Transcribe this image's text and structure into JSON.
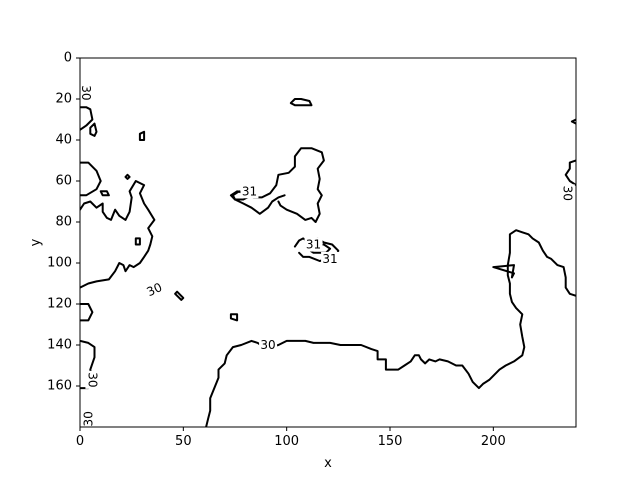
{
  "chart_data": {
    "type": "contour",
    "title": "",
    "xlabel": "x",
    "ylabel": "y",
    "xlim": [
      0,
      240
    ],
    "ylim": [
      180,
      0
    ],
    "y_inverted": true,
    "x_ticks": [
      0,
      50,
      100,
      150,
      200
    ],
    "y_ticks": [
      0,
      20,
      40,
      60,
      80,
      100,
      120,
      140,
      160
    ],
    "grid": false,
    "line_color": "#000000",
    "levels": [
      30,
      31
    ],
    "contour_labels": [
      {
        "text": "30",
        "x": 3,
        "y": 17,
        "angle": 90
      },
      {
        "text": "31",
        "x": 82,
        "y": 65,
        "angle": 0
      },
      {
        "text": "31",
        "x": 113,
        "y": 91,
        "angle": 0
      },
      {
        "text": "31",
        "x": 121,
        "y": 98,
        "angle": 0
      },
      {
        "text": "30",
        "x": 236,
        "y": 66,
        "angle": 90
      },
      {
        "text": "30",
        "x": 36,
        "y": 113,
        "angle": -25
      },
      {
        "text": "30",
        "x": 91,
        "y": 140,
        "angle": 0
      },
      {
        "text": "30",
        "x": 6,
        "y": 157,
        "angle": 90
      },
      {
        "text": "30",
        "x": 4,
        "y": 176,
        "angle": -90
      }
    ],
    "contours": [
      {
        "level": 30,
        "closed": false,
        "points": [
          [
            0,
            51
          ],
          [
            4,
            51
          ],
          [
            8,
            55
          ],
          [
            10,
            60
          ],
          [
            8,
            64
          ],
          [
            3,
            67
          ],
          [
            0,
            67
          ]
        ]
      },
      {
        "level": 30,
        "closed": false,
        "points": [
          [
            0,
            35
          ],
          [
            3,
            33
          ],
          [
            6,
            30
          ],
          [
            5,
            25
          ],
          [
            3,
            24
          ],
          [
            0,
            24
          ]
        ]
      },
      {
        "level": 30,
        "closed": true,
        "points": [
          [
            5,
            34
          ],
          [
            7,
            32
          ],
          [
            8,
            36
          ],
          [
            7,
            38
          ],
          [
            5,
            37
          ]
        ]
      },
      {
        "level": 30,
        "closed": true,
        "points": [
          [
            10,
            65
          ],
          [
            13,
            65
          ],
          [
            14,
            67
          ],
          [
            11,
            67
          ]
        ]
      },
      {
        "level": 30,
        "closed": true,
        "points": [
          [
            22,
            58
          ],
          [
            23,
            57
          ],
          [
            24,
            58
          ],
          [
            23,
            59
          ]
        ]
      },
      {
        "level": 30,
        "closed": true,
        "points": [
          [
            29,
            37
          ],
          [
            31,
            36
          ],
          [
            31,
            40
          ],
          [
            29,
            40
          ]
        ]
      },
      {
        "level": 30,
        "closed": false,
        "points": [
          [
            0,
            112
          ],
          [
            4,
            110
          ],
          [
            8,
            109
          ],
          [
            14,
            108
          ],
          [
            17,
            104
          ],
          [
            19,
            100
          ],
          [
            21,
            101
          ],
          [
            22,
            104
          ],
          [
            24,
            101
          ],
          [
            26,
            102
          ],
          [
            29,
            100
          ],
          [
            31,
            97
          ],
          [
            33,
            94
          ],
          [
            34,
            91
          ],
          [
            35,
            87
          ],
          [
            33,
            83
          ],
          [
            36,
            79
          ],
          [
            33,
            74
          ],
          [
            31,
            71
          ],
          [
            29,
            66
          ],
          [
            31,
            62
          ],
          [
            27,
            60
          ],
          [
            24,
            65
          ],
          [
            25,
            68
          ],
          [
            24,
            75
          ],
          [
            22,
            79
          ],
          [
            19,
            77
          ],
          [
            17,
            74
          ],
          [
            15,
            79
          ],
          [
            13,
            78
          ],
          [
            11,
            75
          ],
          [
            11,
            71
          ],
          [
            8,
            73
          ],
          [
            5,
            70
          ],
          [
            2,
            71
          ],
          [
            0,
            74
          ]
        ]
      },
      {
        "level": 30,
        "closed": true,
        "points": [
          [
            27,
            88
          ],
          [
            29,
            88
          ],
          [
            29,
            91
          ],
          [
            27,
            91
          ]
        ]
      },
      {
        "level": 30,
        "closed": true,
        "points": [
          [
            47,
            114
          ],
          [
            50,
            117
          ],
          [
            49,
            118
          ],
          [
            46,
            115
          ]
        ]
      },
      {
        "level": 30,
        "closed": false,
        "points": [
          [
            0,
            120
          ],
          [
            4,
            120
          ],
          [
            6,
            124
          ],
          [
            4,
            128
          ],
          [
            0,
            128
          ]
        ]
      },
      {
        "level": 30,
        "closed": false,
        "points": [
          [
            0,
            138
          ],
          [
            4,
            139
          ],
          [
            7,
            141
          ],
          [
            7,
            146
          ],
          [
            5,
            152
          ],
          [
            6,
            158
          ],
          [
            4,
            161
          ],
          [
            0,
            161
          ]
        ]
      },
      {
        "level": 30,
        "closed": true,
        "points": [
          [
            73,
            125
          ],
          [
            76,
            125
          ],
          [
            76,
            128
          ],
          [
            73,
            127
          ]
        ]
      },
      {
        "level": 30,
        "closed": true,
        "points": [
          [
            104,
            20
          ],
          [
            107,
            20
          ],
          [
            111,
            21
          ],
          [
            112,
            23
          ],
          [
            109,
            23
          ],
          [
            104,
            23
          ],
          [
            102,
            22
          ]
        ]
      },
      {
        "level": 30,
        "closed": false,
        "points": [
          [
            99,
            67
          ],
          [
            96,
            68
          ],
          [
            93,
            70
          ],
          [
            91,
            73
          ],
          [
            87,
            76
          ],
          [
            83,
            73
          ],
          [
            79,
            71
          ],
          [
            75,
            69
          ],
          [
            73,
            67
          ],
          [
            76,
            65
          ],
          [
            80,
            66
          ],
          [
            84,
            68
          ],
          [
            88,
            68
          ],
          [
            92,
            66
          ],
          [
            95,
            62
          ],
          [
            96,
            57
          ],
          [
            101,
            56
          ],
          [
            104,
            53
          ],
          [
            104,
            48
          ],
          [
            107,
            44
          ],
          [
            112,
            44
          ],
          [
            117,
            46
          ],
          [
            118,
            50
          ],
          [
            115,
            54
          ],
          [
            116,
            59
          ],
          [
            115,
            64
          ],
          [
            117,
            67
          ],
          [
            115,
            71
          ],
          [
            116,
            76
          ],
          [
            114,
            80
          ],
          [
            112,
            78
          ],
          [
            109,
            79
          ],
          [
            105,
            76
          ],
          [
            100,
            74
          ],
          [
            97,
            72
          ],
          [
            96,
            70
          ]
        ]
      },
      {
        "level": 30,
        "closed": false,
        "points": [
          [
            104,
            92
          ],
          [
            106,
            89
          ],
          [
            108,
            88
          ],
          [
            111,
            90
          ],
          [
            115,
            88
          ],
          [
            118,
            90
          ],
          [
            122,
            91
          ],
          [
            125,
            94
          ],
          [
            124,
            97
          ],
          [
            120,
            98
          ],
          [
            116,
            99
          ],
          [
            111,
            97
          ],
          [
            108,
            97
          ],
          [
            106,
            95
          ]
        ]
      },
      {
        "level": 31,
        "closed": true,
        "points": [
          [
            74,
            67
          ],
          [
            77,
            65
          ],
          [
            81,
            66
          ],
          [
            83,
            67
          ],
          [
            79,
            69
          ],
          [
            75,
            69
          ]
        ]
      },
      {
        "level": 31,
        "closed": true,
        "points": [
          [
            110,
            93
          ],
          [
            113,
            91
          ],
          [
            118,
            91
          ],
          [
            121,
            93
          ],
          [
            119,
            95
          ],
          [
            113,
            95
          ]
        ]
      },
      {
        "level": 30,
        "closed": false,
        "points": [
          [
            61,
            180
          ],
          [
            62,
            176
          ],
          [
            63,
            172
          ],
          [
            63,
            166
          ],
          [
            65,
            161
          ],
          [
            67,
            156
          ],
          [
            67,
            152
          ],
          [
            70,
            149
          ],
          [
            71,
            145
          ],
          [
            74,
            141
          ],
          [
            78,
            140
          ],
          [
            83,
            138
          ],
          [
            86,
            139
          ],
          [
            89,
            141
          ],
          [
            92,
            141
          ],
          [
            96,
            140
          ],
          [
            100,
            138
          ],
          [
            104,
            138
          ],
          [
            109,
            138
          ],
          [
            113,
            139
          ],
          [
            117,
            139
          ],
          [
            121,
            139
          ],
          [
            126,
            140
          ],
          [
            131,
            140
          ],
          [
            136,
            140
          ],
          [
            141,
            142
          ],
          [
            144,
            143
          ],
          [
            144,
            147
          ],
          [
            148,
            147
          ],
          [
            148,
            152
          ],
          [
            154,
            152
          ],
          [
            157,
            150
          ],
          [
            160,
            148
          ],
          [
            162,
            145
          ],
          [
            164,
            145
          ],
          [
            165,
            147
          ],
          [
            167,
            149
          ],
          [
            169,
            147
          ],
          [
            172,
            148
          ],
          [
            174,
            147
          ],
          [
            178,
            148
          ],
          [
            182,
            150
          ],
          [
            185,
            150
          ],
          [
            188,
            154
          ],
          [
            190,
            158
          ],
          [
            193,
            161
          ],
          [
            195,
            159
          ],
          [
            198,
            157
          ],
          [
            200,
            155
          ],
          [
            203,
            152
          ],
          [
            206,
            150
          ],
          [
            210,
            148
          ],
          [
            214,
            145
          ],
          [
            215,
            141
          ],
          [
            214,
            136
          ],
          [
            213,
            130
          ],
          [
            214,
            125
          ],
          [
            211,
            122
          ],
          [
            209,
            119
          ],
          [
            208,
            115
          ],
          [
            208,
            110
          ],
          [
            207,
            106
          ],
          [
            207,
            101
          ],
          [
            208,
            95
          ],
          [
            208,
            90
          ],
          [
            208,
            86
          ],
          [
            211,
            84
          ],
          [
            214,
            85
          ],
          [
            217,
            86
          ],
          [
            219,
            88
          ],
          [
            222,
            90
          ],
          [
            224,
            94
          ],
          [
            226,
            97
          ],
          [
            228,
            98
          ],
          [
            231,
            101
          ],
          [
            234,
            102
          ],
          [
            235,
            107
          ],
          [
            235,
            112
          ],
          [
            237,
            115
          ],
          [
            240,
            116
          ]
        ]
      },
      {
        "level": 30,
        "closed": true,
        "points": [
          [
            200,
            102
          ],
          [
            210,
            105
          ],
          [
            209,
            107
          ],
          [
            210,
            101
          ]
        ]
      },
      {
        "level": 30,
        "closed": false,
        "points": [
          [
            240,
            62
          ],
          [
            237,
            60
          ],
          [
            235,
            57
          ],
          [
            237,
            54
          ],
          [
            237,
            51
          ],
          [
            240,
            50
          ]
        ]
      },
      {
        "level": 30,
        "closed": false,
        "points": [
          [
            240,
            32
          ],
          [
            238,
            31
          ],
          [
            240,
            30
          ]
        ]
      }
    ]
  }
}
